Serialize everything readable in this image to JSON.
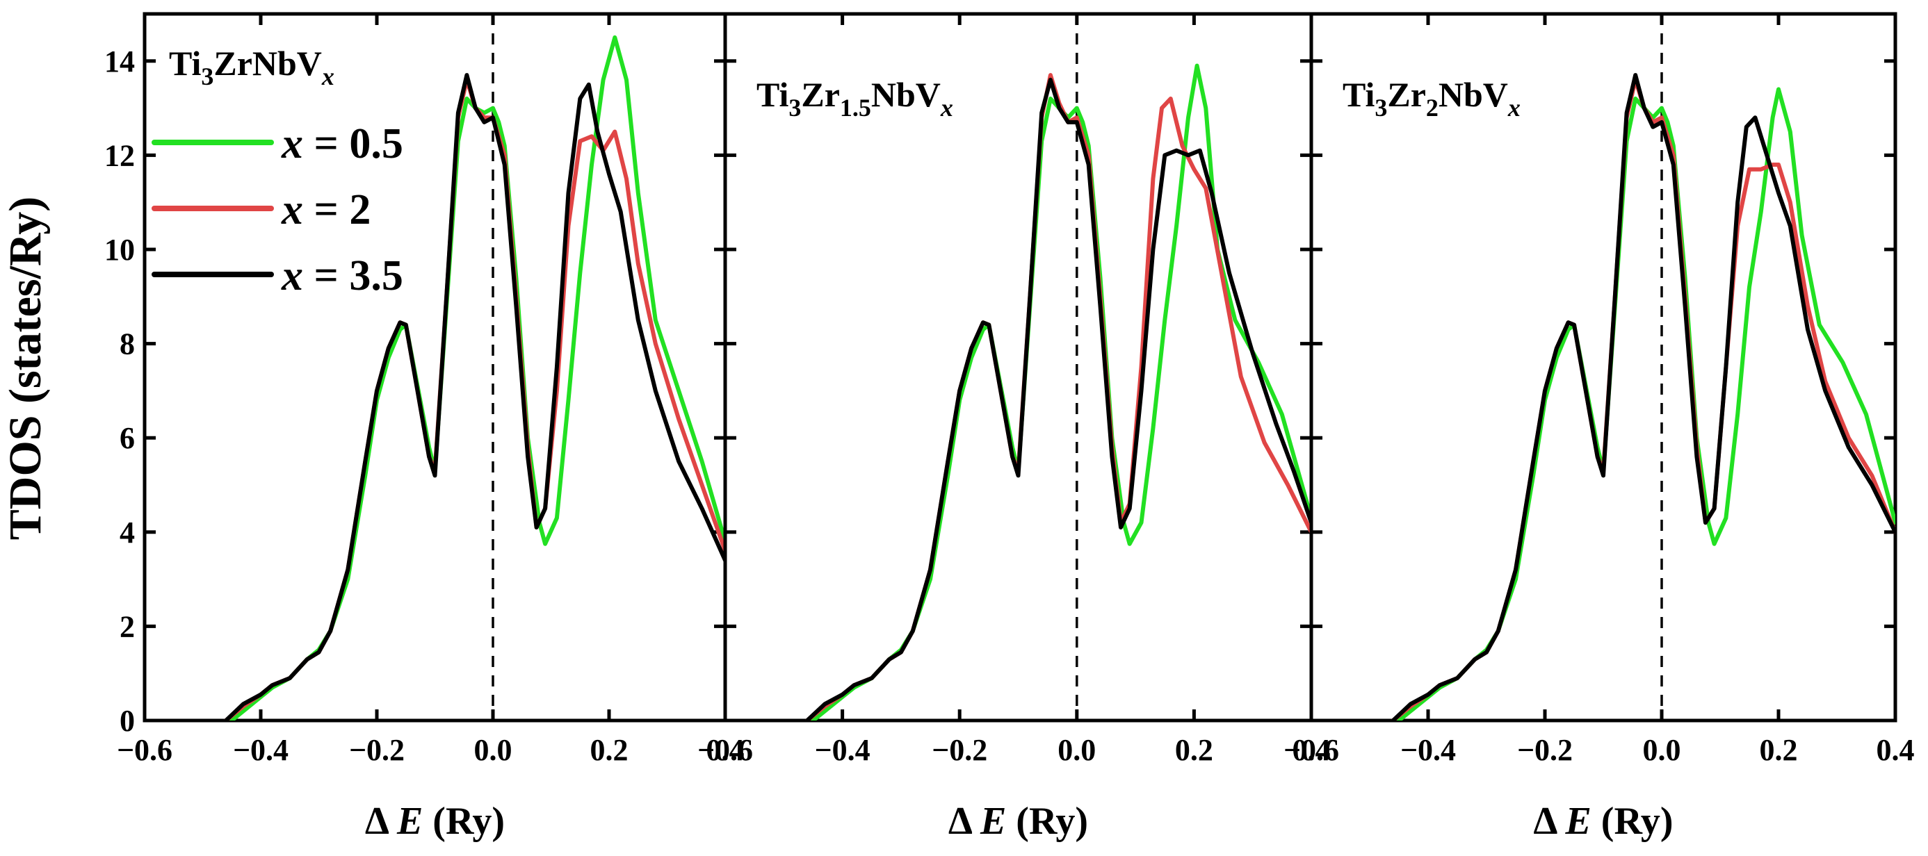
{
  "ylabel": "TDOS (states/Ry)",
  "legend": {
    "position": "top-left of first panel",
    "entries": [
      {
        "label": "x = 0.5",
        "var": "x",
        "rest": " = 0.5",
        "color": "#22e022"
      },
      {
        "label": "x = 2",
        "var": "x",
        "rest": " = 2",
        "color": "#e04545"
      },
      {
        "label": "x = 3.5",
        "var": "x",
        "rest": " = 3.5",
        "color": "#000000"
      }
    ]
  },
  "chart_data": [
    {
      "type": "line",
      "title": "Ti3ZrNbVx",
      "title_parts": {
        "el1": "Ti",
        "sub1": "3",
        "el2": "ZrNbV",
        "sub2": "x"
      },
      "xlabel_parts": {
        "delta": "Δ ",
        "var": "E",
        "unit": " (Ry)"
      },
      "ylabel": "TDOS (states/Ry)",
      "xlim": [
        -0.6,
        0.4
      ],
      "ylim": [
        0,
        15
      ],
      "xticks": [
        "-0.6",
        "-0.4",
        "-0.2",
        "0.0",
        "0.2",
        "0.4"
      ],
      "yticks": [
        "0",
        "2",
        "4",
        "6",
        "8",
        "10",
        "12",
        "14"
      ],
      "fermi_line_x": 0.0,
      "series": [
        {
          "name": "x = 0.5",
          "color": "#22e022",
          "x": [
            -0.45,
            -0.42,
            -0.4,
            -0.38,
            -0.35,
            -0.32,
            -0.3,
            -0.28,
            -0.25,
            -0.22,
            -0.2,
            -0.18,
            -0.16,
            -0.15,
            -0.13,
            -0.11,
            -0.1,
            -0.08,
            -0.06,
            -0.045,
            -0.03,
            -0.015,
            0.0,
            0.01,
            0.02,
            0.04,
            0.06,
            0.08,
            0.09,
            0.11,
            0.13,
            0.15,
            0.17,
            0.19,
            0.21,
            0.23,
            0.25,
            0.28,
            0.32,
            0.36,
            0.4
          ],
          "y": [
            0.0,
            0.3,
            0.5,
            0.7,
            0.9,
            1.3,
            1.5,
            1.9,
            3.0,
            5.2,
            6.8,
            7.7,
            8.3,
            8.4,
            7.1,
            5.8,
            5.3,
            8.8,
            12.3,
            13.2,
            13.0,
            12.9,
            13.0,
            12.7,
            12.2,
            9.4,
            6.0,
            4.2,
            3.75,
            4.3,
            6.8,
            9.5,
            11.8,
            13.6,
            14.5,
            13.6,
            11.2,
            8.5,
            7.0,
            5.5,
            3.8
          ]
        },
        {
          "name": "x = 2",
          "color": "#e04545",
          "x": [
            -0.46,
            -0.43,
            -0.4,
            -0.38,
            -0.35,
            -0.32,
            -0.3,
            -0.28,
            -0.25,
            -0.22,
            -0.2,
            -0.18,
            -0.16,
            -0.15,
            -0.13,
            -0.11,
            -0.1,
            -0.08,
            -0.06,
            -0.045,
            -0.03,
            -0.015,
            0.0,
            0.02,
            0.04,
            0.06,
            0.075,
            0.09,
            0.11,
            0.13,
            0.15,
            0.17,
            0.19,
            0.21,
            0.23,
            0.25,
            0.28,
            0.32,
            0.36,
            0.4
          ],
          "y": [
            0.0,
            0.3,
            0.55,
            0.75,
            0.9,
            1.3,
            1.45,
            1.9,
            3.2,
            5.5,
            7.0,
            7.9,
            8.45,
            8.4,
            7.0,
            5.6,
            5.3,
            9.0,
            12.8,
            13.6,
            13.0,
            12.8,
            12.8,
            12.0,
            9.0,
            5.8,
            4.1,
            4.5,
            7.0,
            10.5,
            12.3,
            12.4,
            12.1,
            12.5,
            11.5,
            9.7,
            8.0,
            6.4,
            5.0,
            3.6
          ]
        },
        {
          "name": "x = 3.5",
          "color": "#000000",
          "x": [
            -0.46,
            -0.43,
            -0.4,
            -0.38,
            -0.35,
            -0.32,
            -0.3,
            -0.28,
            -0.25,
            -0.22,
            -0.2,
            -0.18,
            -0.16,
            -0.15,
            -0.13,
            -0.11,
            -0.1,
            -0.08,
            -0.06,
            -0.045,
            -0.03,
            -0.015,
            0.0,
            0.02,
            0.04,
            0.06,
            0.075,
            0.09,
            0.11,
            0.13,
            0.15,
            0.165,
            0.18,
            0.2,
            0.22,
            0.25,
            0.28,
            0.32,
            0.36,
            0.4
          ],
          "y": [
            0.0,
            0.35,
            0.55,
            0.75,
            0.9,
            1.3,
            1.45,
            1.9,
            3.2,
            5.5,
            7.0,
            7.9,
            8.45,
            8.4,
            7.0,
            5.6,
            5.2,
            9.0,
            12.9,
            13.7,
            13.0,
            12.7,
            12.8,
            11.8,
            8.8,
            5.6,
            4.1,
            4.5,
            7.5,
            11.2,
            13.2,
            13.5,
            12.5,
            11.6,
            10.8,
            8.5,
            7.0,
            5.5,
            4.5,
            3.4
          ]
        }
      ]
    },
    {
      "type": "line",
      "title": "Ti3Zr1.5NbVx",
      "title_parts": {
        "el1": "Ti",
        "sub1": "3",
        "el2": "Zr",
        "sub2": "1.5",
        "el3": "NbV",
        "sub3": "x"
      },
      "xlabel_parts": {
        "delta": "Δ ",
        "var": "E",
        "unit": " (Ry)"
      },
      "ylabel": "TDOS (states/Ry)",
      "xlim": [
        -0.6,
        0.4
      ],
      "ylim": [
        0,
        15
      ],
      "xticks": [
        "-0.6",
        "-0.4",
        "-0.2",
        "0.0",
        "0.2",
        "0.4"
      ],
      "yticks": [
        "0",
        "2",
        "4",
        "6",
        "8",
        "10",
        "12",
        "14"
      ],
      "fermi_line_x": 0.0,
      "series": [
        {
          "name": "x = 0.5",
          "color": "#22e022",
          "x": [
            -0.45,
            -0.42,
            -0.4,
            -0.38,
            -0.35,
            -0.32,
            -0.3,
            -0.28,
            -0.25,
            -0.22,
            -0.2,
            -0.18,
            -0.16,
            -0.15,
            -0.13,
            -0.11,
            -0.1,
            -0.08,
            -0.06,
            -0.045,
            -0.03,
            -0.015,
            0.0,
            0.01,
            0.02,
            0.04,
            0.06,
            0.08,
            0.09,
            0.11,
            0.13,
            0.15,
            0.17,
            0.19,
            0.205,
            0.22,
            0.24,
            0.27,
            0.31,
            0.35,
            0.4
          ],
          "y": [
            0.0,
            0.3,
            0.5,
            0.7,
            0.9,
            1.3,
            1.5,
            1.9,
            3.0,
            5.2,
            6.8,
            7.7,
            8.3,
            8.4,
            7.1,
            5.8,
            5.3,
            8.8,
            12.3,
            13.2,
            13.0,
            12.8,
            13.0,
            12.7,
            12.2,
            9.4,
            6.0,
            4.2,
            3.75,
            4.2,
            6.2,
            8.5,
            10.5,
            12.8,
            13.9,
            13.0,
            10.0,
            8.5,
            7.6,
            6.5,
            4.3
          ]
        },
        {
          "name": "x = 2",
          "color": "#e04545",
          "x": [
            -0.46,
            -0.43,
            -0.4,
            -0.38,
            -0.35,
            -0.32,
            -0.3,
            -0.28,
            -0.25,
            -0.22,
            -0.2,
            -0.18,
            -0.16,
            -0.15,
            -0.13,
            -0.11,
            -0.1,
            -0.08,
            -0.06,
            -0.045,
            -0.03,
            -0.015,
            0.0,
            0.02,
            0.04,
            0.06,
            0.075,
            0.09,
            0.11,
            0.13,
            0.145,
            0.16,
            0.18,
            0.2,
            0.22,
            0.25,
            0.28,
            0.32,
            0.36,
            0.4
          ],
          "y": [
            0.0,
            0.3,
            0.55,
            0.75,
            0.9,
            1.3,
            1.45,
            1.9,
            3.2,
            5.5,
            7.0,
            7.9,
            8.45,
            8.4,
            7.0,
            5.6,
            5.3,
            9.0,
            12.8,
            13.7,
            13.1,
            12.7,
            12.8,
            12.0,
            9.0,
            5.8,
            4.2,
            4.6,
            7.5,
            11.5,
            13.0,
            13.2,
            12.2,
            11.7,
            11.3,
            9.3,
            7.3,
            5.9,
            5.0,
            4.0
          ]
        },
        {
          "name": "x = 3.5",
          "color": "#000000",
          "x": [
            -0.46,
            -0.43,
            -0.4,
            -0.38,
            -0.35,
            -0.32,
            -0.3,
            -0.28,
            -0.25,
            -0.22,
            -0.2,
            -0.18,
            -0.16,
            -0.15,
            -0.13,
            -0.11,
            -0.1,
            -0.08,
            -0.06,
            -0.045,
            -0.03,
            -0.015,
            0.0,
            0.02,
            0.04,
            0.06,
            0.075,
            0.09,
            0.11,
            0.13,
            0.15,
            0.17,
            0.19,
            0.21,
            0.23,
            0.26,
            0.3,
            0.34,
            0.37,
            0.4
          ],
          "y": [
            0.0,
            0.35,
            0.55,
            0.75,
            0.9,
            1.3,
            1.45,
            1.9,
            3.2,
            5.5,
            7.0,
            7.9,
            8.45,
            8.4,
            7.0,
            5.6,
            5.2,
            9.0,
            12.9,
            13.6,
            13.0,
            12.7,
            12.7,
            11.8,
            8.8,
            5.6,
            4.1,
            4.5,
            7.0,
            10.0,
            12.0,
            12.1,
            12.0,
            12.1,
            11.2,
            9.5,
            7.8,
            6.3,
            5.3,
            4.2
          ]
        }
      ]
    },
    {
      "type": "line",
      "title": "Ti3Zr2NbVx",
      "title_parts": {
        "el1": "Ti",
        "sub1": "3",
        "el2": "Zr",
        "sub2": "2",
        "el3": "NbV",
        "sub3": "x"
      },
      "xlabel_parts": {
        "delta": "Δ ",
        "var": "E",
        "unit": " (Ry)"
      },
      "ylabel": "TDOS (states/Ry)",
      "xlim": [
        -0.6,
        0.4
      ],
      "ylim": [
        0,
        15
      ],
      "xticks": [
        "-0.6",
        "-0.4",
        "-0.2",
        "0.0",
        "0.2",
        "0.4"
      ],
      "yticks": [
        "0",
        "2",
        "4",
        "6",
        "8",
        "10",
        "12",
        "14"
      ],
      "fermi_line_x": 0.0,
      "series": [
        {
          "name": "x = 0.5",
          "color": "#22e022",
          "x": [
            -0.45,
            -0.42,
            -0.4,
            -0.38,
            -0.35,
            -0.32,
            -0.3,
            -0.28,
            -0.25,
            -0.22,
            -0.2,
            -0.18,
            -0.16,
            -0.15,
            -0.13,
            -0.11,
            -0.1,
            -0.08,
            -0.06,
            -0.045,
            -0.03,
            -0.015,
            0.0,
            0.01,
            0.02,
            0.04,
            0.06,
            0.08,
            0.09,
            0.11,
            0.13,
            0.15,
            0.17,
            0.19,
            0.2,
            0.22,
            0.24,
            0.27,
            0.31,
            0.35,
            0.4
          ],
          "y": [
            0.0,
            0.3,
            0.5,
            0.7,
            0.9,
            1.3,
            1.5,
            1.9,
            3.0,
            5.2,
            6.8,
            7.7,
            8.3,
            8.4,
            7.1,
            5.8,
            5.3,
            8.8,
            12.3,
            13.2,
            13.0,
            12.8,
            13.0,
            12.7,
            12.2,
            9.4,
            6.0,
            4.2,
            3.75,
            4.3,
            6.5,
            9.2,
            10.8,
            12.8,
            13.4,
            12.5,
            10.3,
            8.4,
            7.6,
            6.5,
            4.2
          ]
        },
        {
          "name": "x = 2",
          "color": "#e04545",
          "x": [
            -0.46,
            -0.43,
            -0.4,
            -0.38,
            -0.35,
            -0.32,
            -0.3,
            -0.28,
            -0.25,
            -0.22,
            -0.2,
            -0.18,
            -0.16,
            -0.15,
            -0.13,
            -0.11,
            -0.1,
            -0.08,
            -0.06,
            -0.045,
            -0.03,
            -0.015,
            0.0,
            0.02,
            0.04,
            0.06,
            0.075,
            0.09,
            0.11,
            0.13,
            0.15,
            0.17,
            0.19,
            0.2,
            0.22,
            0.25,
            0.28,
            0.32,
            0.36,
            0.4
          ],
          "y": [
            0.0,
            0.3,
            0.55,
            0.75,
            0.9,
            1.3,
            1.45,
            1.9,
            3.2,
            5.5,
            7.0,
            7.9,
            8.45,
            8.4,
            7.0,
            5.6,
            5.3,
            9.0,
            12.8,
            13.6,
            13.0,
            12.7,
            12.8,
            12.0,
            9.0,
            5.8,
            4.2,
            4.5,
            7.5,
            10.5,
            11.7,
            11.7,
            11.8,
            11.8,
            11.0,
            8.8,
            7.2,
            6.0,
            5.2,
            4.0
          ]
        },
        {
          "name": "x = 3.5",
          "color": "#000000",
          "x": [
            -0.46,
            -0.43,
            -0.4,
            -0.38,
            -0.35,
            -0.32,
            -0.3,
            -0.28,
            -0.25,
            -0.22,
            -0.2,
            -0.18,
            -0.16,
            -0.15,
            -0.13,
            -0.11,
            -0.1,
            -0.08,
            -0.06,
            -0.045,
            -0.03,
            -0.015,
            0.0,
            0.02,
            0.04,
            0.06,
            0.075,
            0.09,
            0.11,
            0.13,
            0.145,
            0.16,
            0.18,
            0.2,
            0.22,
            0.25,
            0.28,
            0.32,
            0.36,
            0.4
          ],
          "y": [
            0.0,
            0.35,
            0.55,
            0.75,
            0.9,
            1.3,
            1.45,
            1.9,
            3.2,
            5.5,
            7.0,
            7.9,
            8.45,
            8.4,
            7.0,
            5.6,
            5.2,
            9.0,
            12.9,
            13.7,
            13.0,
            12.6,
            12.7,
            11.8,
            8.8,
            5.6,
            4.2,
            4.5,
            7.5,
            11.0,
            12.6,
            12.8,
            12.0,
            11.2,
            10.5,
            8.3,
            7.0,
            5.8,
            5.0,
            4.0
          ]
        }
      ]
    }
  ]
}
